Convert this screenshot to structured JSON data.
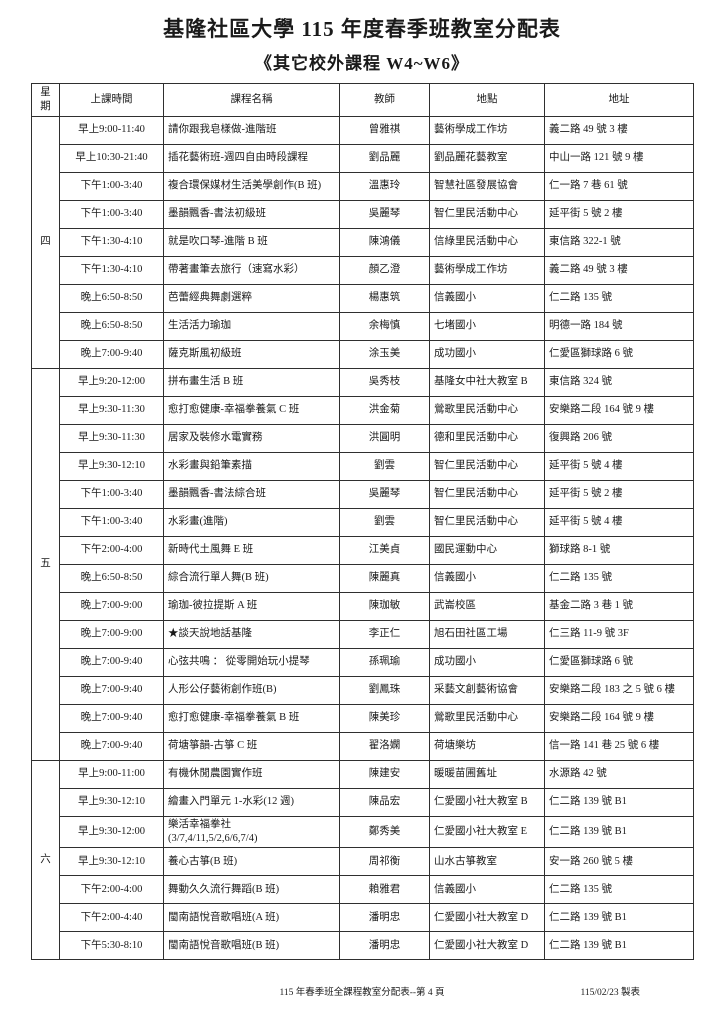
{
  "page": {
    "title": "基隆社區大學 115 年度春季班教室分配表",
    "subtitle": "《其它校外課程 W4~W6》",
    "footer_center": "115 年春季班全課程教室分配表--第 4 頁",
    "footer_right": "115/02/23 製表"
  },
  "table": {
    "headers": [
      "星期",
      "上課時間",
      "課程名稱",
      "教師",
      "地點",
      "地址"
    ],
    "groups": [
      {
        "day": "四",
        "rows": [
          [
            "早上9:00-11:40",
            "請你跟我皂樣做-進階班",
            "曾雅祺",
            "藝術學成工作坊",
            "義二路 49 號 3 樓"
          ],
          [
            "早上10:30-21:40",
            "插花藝術班-週四自由時段課程",
            "劉品麗",
            "劉品麗花藝教室",
            "中山一路 121 號 9 樓"
          ],
          [
            "下午1:00-3:40",
            "複合環保媒材生活美學創作(B 班)",
            "溫惠玲",
            "智慧社區發展協會",
            "仁一路 7 巷 61 號"
          ],
          [
            "下午1:00-3:40",
            "墨韻飄香-書法初級班",
            "吳麗琴",
            "智仁里民活動中心",
            "延平街 5 號 2 樓"
          ],
          [
            "下午1:30-4:10",
            "就是吹口琴-進階 B 班",
            "陳鴻儀",
            "信綠里民活動中心",
            "東信路 322-1 號"
          ],
          [
            "下午1:30-4:10",
            "帶著畫筆去旅行（速寫水彩）",
            "顏乙澄",
            "藝術學成工作坊",
            "義二路 49 號 3 樓"
          ],
          [
            "晚上6:50-8:50",
            "芭蕾經典舞劇選粹",
            "楊惠筑",
            "信義國小",
            "仁二路 135 號"
          ],
          [
            "晚上6:50-8:50",
            "生活活力瑜珈",
            "余梅慎",
            "七堵國小",
            "明德一路 184 號"
          ],
          [
            "晚上7:00-9:40",
            "薩克斯風初級班",
            "涂玉美",
            "成功國小",
            "仁愛區獅球路 6 號"
          ]
        ]
      },
      {
        "day": "五",
        "rows": [
          [
            "早上9:20-12:00",
            "拼布畫生活 B 班",
            "吳秀枝",
            "基隆女中社大教室 B",
            "東信路 324 號"
          ],
          [
            "早上9:30-11:30",
            "愈打愈健康-幸福拳養氣 C 班",
            "洪金菊",
            "鶯歌里民活動中心",
            "安樂路二段 164 號 9 樓"
          ],
          [
            "早上9:30-11:30",
            "居家及裝修水電實務",
            "洪圓明",
            "德和里民活動中心",
            "復興路 206 號"
          ],
          [
            "早上9:30-12:10",
            "水彩畫與鉛筆素描",
            "劉雲",
            "智仁里民活動中心",
            "延平街 5 號 4 樓"
          ],
          [
            "下午1:00-3:40",
            "墨韻飄香-書法綜合班",
            "吳麗琴",
            "智仁里民活動中心",
            "延平街 5 號 2 樓"
          ],
          [
            "下午1:00-3:40",
            "水彩畫(進階)",
            "劉雲",
            "智仁里民活動中心",
            "延平街 5 號 4 樓"
          ],
          [
            "下午2:00-4:00",
            "新時代土風舞 E 班",
            "江美貞",
            "國民運動中心",
            "獅球路 8-1 號"
          ],
          [
            "晚上6:50-8:50",
            "綜合流行單人舞(B 班)",
            "陳麗真",
            "信義國小",
            "仁二路 135 號"
          ],
          [
            "晚上7:00-9:00",
            "瑜珈-彼拉提斯 A 班",
            "陳珈敏",
            "武崙校區",
            "基金二路 3 巷 1 號"
          ],
          [
            "晚上7:00-9:00",
            "★談天說地話基隆",
            "李正仁",
            "旭石田社區工場",
            "仁三路 11-9 號 3F"
          ],
          [
            "晚上7:00-9:40",
            "心弦共鳴 ： 從零開始玩小提琴",
            "孫珮瑜",
            "成功國小",
            "仁愛區獅球路 6 號"
          ],
          [
            "晚上7:00-9:40",
            "人形公仔藝術創作班(B)",
            "劉鳳珠",
            "采藝文創藝術協會",
            "安樂路二段 183 之 5 號 6 樓"
          ],
          [
            "晚上7:00-9:40",
            "愈打愈健康-幸福拳養氣 B 班",
            "陳美珍",
            "鶯歌里民活動中心",
            "安樂路二段 164 號 9 樓"
          ],
          [
            "晚上7:00-9:40",
            "荷塘箏韻-古箏 C 班",
            "翟洛嫻",
            "荷塘樂坊",
            "信一路 141 巷 25 號 6 樓"
          ]
        ]
      },
      {
        "day": "六",
        "rows": [
          [
            "早上9:00-11:00",
            "有機休閒農園實作班",
            "陳建安",
            "暖暖苗圃舊址",
            "水源路 42 號"
          ],
          [
            "早上9:30-12:10",
            "繪畫入門單元 1-水彩(12 週)",
            "陳品宏",
            "仁愛國小社大教室 B",
            "仁二路 139 號 B1"
          ],
          [
            "早上9:30-12:00",
            "樂活幸福拳社\n(3/7,4/11,5/2,6/6,7/4)",
            "鄭秀美",
            "仁愛國小社大教室 E",
            "仁二路 139 號 B1"
          ],
          [
            "早上9:30-12:10",
            "養心古箏(B 班)",
            "周祁衡",
            "山水古箏教室",
            "安一路 260 號 5 樓"
          ],
          [
            "下午2:00-4:00",
            "舞動久久流行舞蹈(B 班)",
            "賴雅君",
            "信義國小",
            "仁二路 135 號"
          ],
          [
            "下午2:00-4:40",
            "閩南語悅音歌唱班(A 班)",
            "潘明忠",
            "仁愛國小社大教室 D",
            "仁二路 139 號 B1"
          ],
          [
            "下午5:30-8:10",
            "閩南語悅音歌唱班(B 班)",
            "潘明忠",
            "仁愛國小社大教室 D",
            "仁二路 139 號 B1"
          ]
        ]
      }
    ]
  }
}
